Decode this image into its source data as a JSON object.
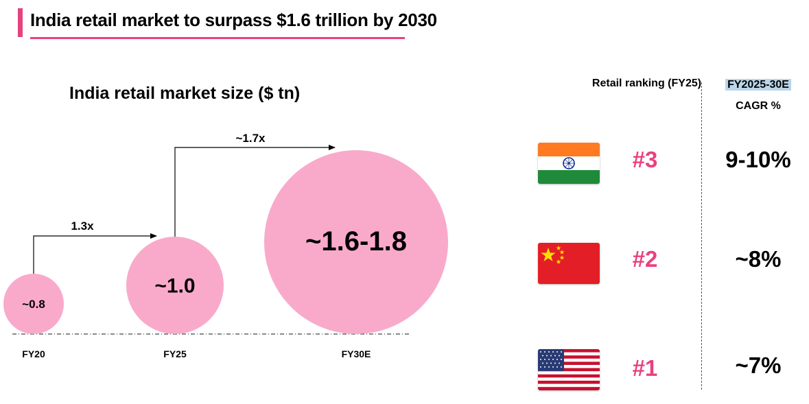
{
  "page": {
    "title": "India retail market to surpass $1.6 trillion by 2030",
    "accent_color": "#e8417f",
    "bubble_color": "#f9aacb"
  },
  "chart_data": {
    "type": "bubble",
    "title": "India retail market size ($ tn)",
    "categories": [
      "FY20",
      "FY25",
      "FY30E"
    ],
    "values": [
      0.8,
      1.0,
      1.7
    ],
    "value_labels": [
      "~0.8",
      "~1.0",
      "~1.6-1.8"
    ],
    "growth_arrows": [
      {
        "from": "FY20",
        "to": "FY25",
        "label": "1.3x"
      },
      {
        "from": "FY25",
        "to": "FY30E",
        "label": "~1.7x"
      }
    ]
  },
  "ranking": {
    "header_rank": "Retail ranking (FY25)",
    "header_period": "FY2025-30E",
    "header_cagr": "CAGR %",
    "rows": [
      {
        "country": "India",
        "flag": "india-flag-icon",
        "rank": "#3",
        "cagr": "9-10%"
      },
      {
        "country": "China",
        "flag": "china-flag-icon",
        "rank": "#2",
        "cagr": "~8%"
      },
      {
        "country": "USA",
        "flag": "usa-flag-icon",
        "rank": "#1",
        "cagr": "~7%"
      }
    ]
  }
}
